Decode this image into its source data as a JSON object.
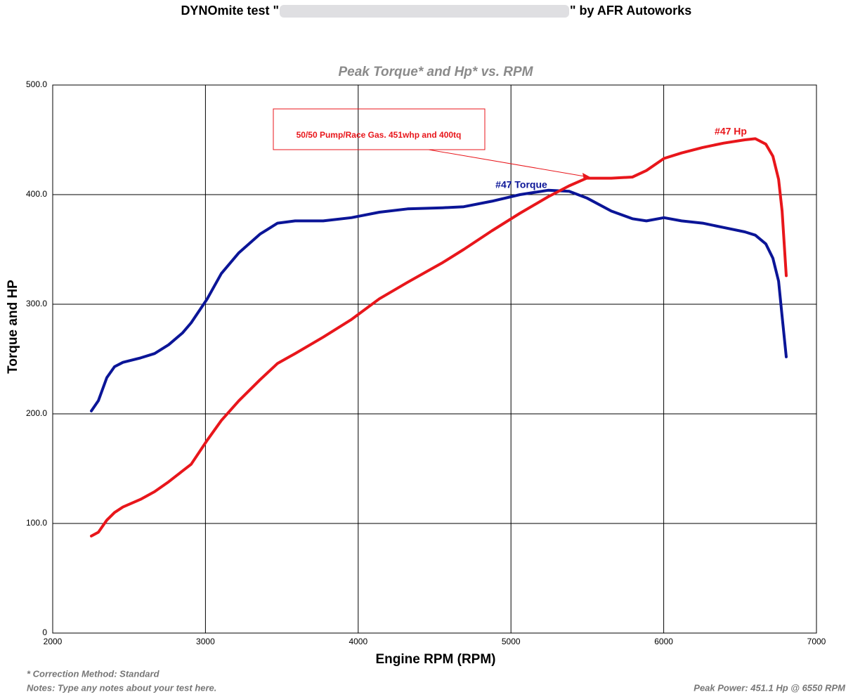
{
  "chart_data": {
    "type": "line",
    "title": "DYNOmite test \"",
    "title_suffix": "\" by AFR Autoworks",
    "subtitle": "Peak Torque* and Hp* vs. RPM",
    "x_label": "Engine RPM (RPM)",
    "y_label": "Torque and HP",
    "annotation": "50/50 Pump/Race Gas. 451whp and 400tq",
    "footnote_correction": "* Correction Method: Standard",
    "footnote_notes": "Notes: Type any notes about your test here.",
    "footnote_peak": "Peak Power: 451.1 Hp @ 6550 RPM",
    "xlim": [
      2000,
      7000
    ],
    "xticks": [
      2000,
      3000,
      4000,
      5000,
      6000,
      7000
    ],
    "ylim": [
      0,
      500
    ],
    "yticks": [
      0,
      {
        "value": 100,
        "label": "100.0"
      },
      {
        "value": 200,
        "label": "200.0"
      },
      {
        "value": 300,
        "label": "300.0"
      },
      {
        "value": 400,
        "label": "400.0"
      },
      {
        "value": 500,
        "label": "500.0"
      }
    ],
    "grid": true,
    "x": [
      2253,
      2299,
      2354,
      2405,
      2460,
      2575,
      2667,
      2759,
      2851,
      2906,
      3012,
      3104,
      3219,
      3357,
      3472,
      3587,
      3771,
      3955,
      4139,
      4323,
      4553,
      4691,
      4875,
      5059,
      5243,
      5381,
      5496,
      5657,
      5795,
      5887,
      6002,
      6117,
      6255,
      6393,
      6531,
      6600,
      6669,
      6715,
      6752,
      6775,
      6802
    ],
    "series": [
      {
        "name": "#47 Torque",
        "color": "#0b1597",
        "values": [
          202.6,
          212,
          233,
          243,
          247,
          251,
          255,
          263,
          274,
          283,
          305,
          328,
          347,
          364,
          374,
          376,
          376,
          379,
          384,
          387,
          388,
          389,
          394,
          400,
          404,
          403,
          397,
          385,
          378,
          376,
          379,
          376,
          374,
          370,
          366,
          363,
          355,
          342,
          321,
          289,
          252
        ]
      },
      {
        "name": "#47 Hp",
        "color": "#e8161b",
        "values": [
          88.5,
          92,
          103,
          110,
          115,
          122,
          129,
          138,
          148,
          154,
          176,
          194,
          212,
          231,
          246,
          255,
          270,
          286,
          305,
          320,
          338,
          350,
          367,
          383,
          398,
          408,
          415,
          415,
          416,
          422,
          433,
          438,
          443,
          447,
          450,
          451,
          446,
          435,
          414,
          385,
          326
        ]
      }
    ]
  }
}
